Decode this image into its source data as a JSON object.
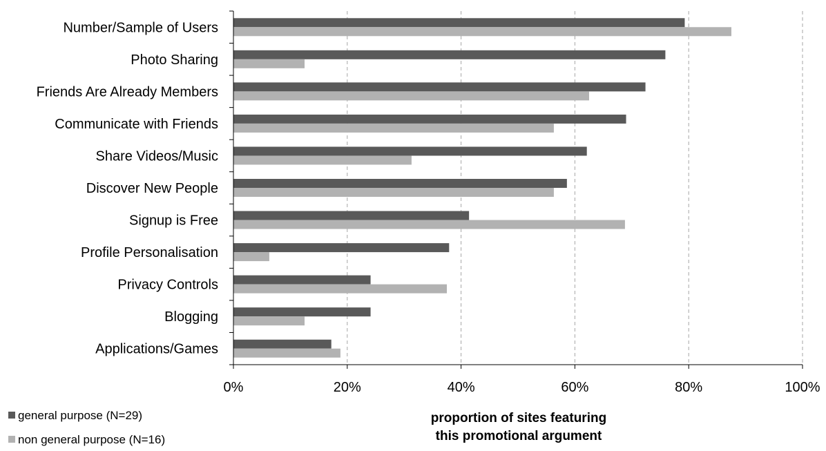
{
  "chart_data": {
    "type": "bar",
    "orientation": "horizontal",
    "categories": [
      "Number/Sample of Users",
      "Photo Sharing",
      "Friends Are Already Members",
      "Communicate with Friends",
      "Share Videos/Music",
      "Discover New People",
      "Signup is Free",
      "Profile Personalisation",
      "Privacy Controls",
      "Blogging",
      "Applications/Games"
    ],
    "series": [
      {
        "name": "general purpose (N=29)",
        "color": "#595959",
        "values": [
          79.3,
          75.9,
          72.4,
          69.0,
          62.1,
          58.6,
          41.4,
          37.9,
          24.1,
          24.1,
          17.2
        ]
      },
      {
        "name": "non general purpose (N=16)",
        "color": "#b2b2b2",
        "values": [
          87.5,
          12.5,
          62.5,
          56.3,
          31.3,
          56.3,
          68.8,
          6.3,
          37.5,
          12.5,
          18.8
        ]
      }
    ],
    "xlim": [
      0,
      100
    ],
    "xticks": [
      "0%",
      "20%",
      "40%",
      "60%",
      "80%",
      "100%"
    ],
    "xlabel": [
      "proportion of sites featuring",
      "this promotional argument"
    ],
    "grid": "vertical dashed",
    "legend_position": "bottom-left"
  }
}
